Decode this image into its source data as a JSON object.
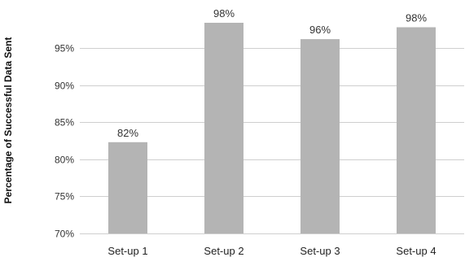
{
  "chart_data": {
    "type": "bar",
    "title": "",
    "xlabel": "",
    "ylabel": "Percentage of Successful Data Sent",
    "categories": [
      "Set-up 1",
      "Set-up 2",
      "Set-up 3",
      "Set-up 4"
    ],
    "values": [
      82,
      98,
      96,
      98
    ],
    "plotted_values": [
      82.3,
      98.4,
      96.2,
      97.8
    ],
    "data_labels": [
      "82%",
      "98%",
      "96%",
      "98%"
    ],
    "ylim": [
      70,
      99.5
    ],
    "yticks": [
      70,
      75,
      80,
      85,
      90,
      95
    ],
    "ytick_labels": [
      "70%",
      "75%",
      "80%",
      "85%",
      "90%",
      "95%"
    ],
    "grid": true,
    "legend": "none",
    "colors": {
      "bar": "#b4b4b4",
      "grid": "#cfcfcf",
      "text": "#333333"
    }
  }
}
